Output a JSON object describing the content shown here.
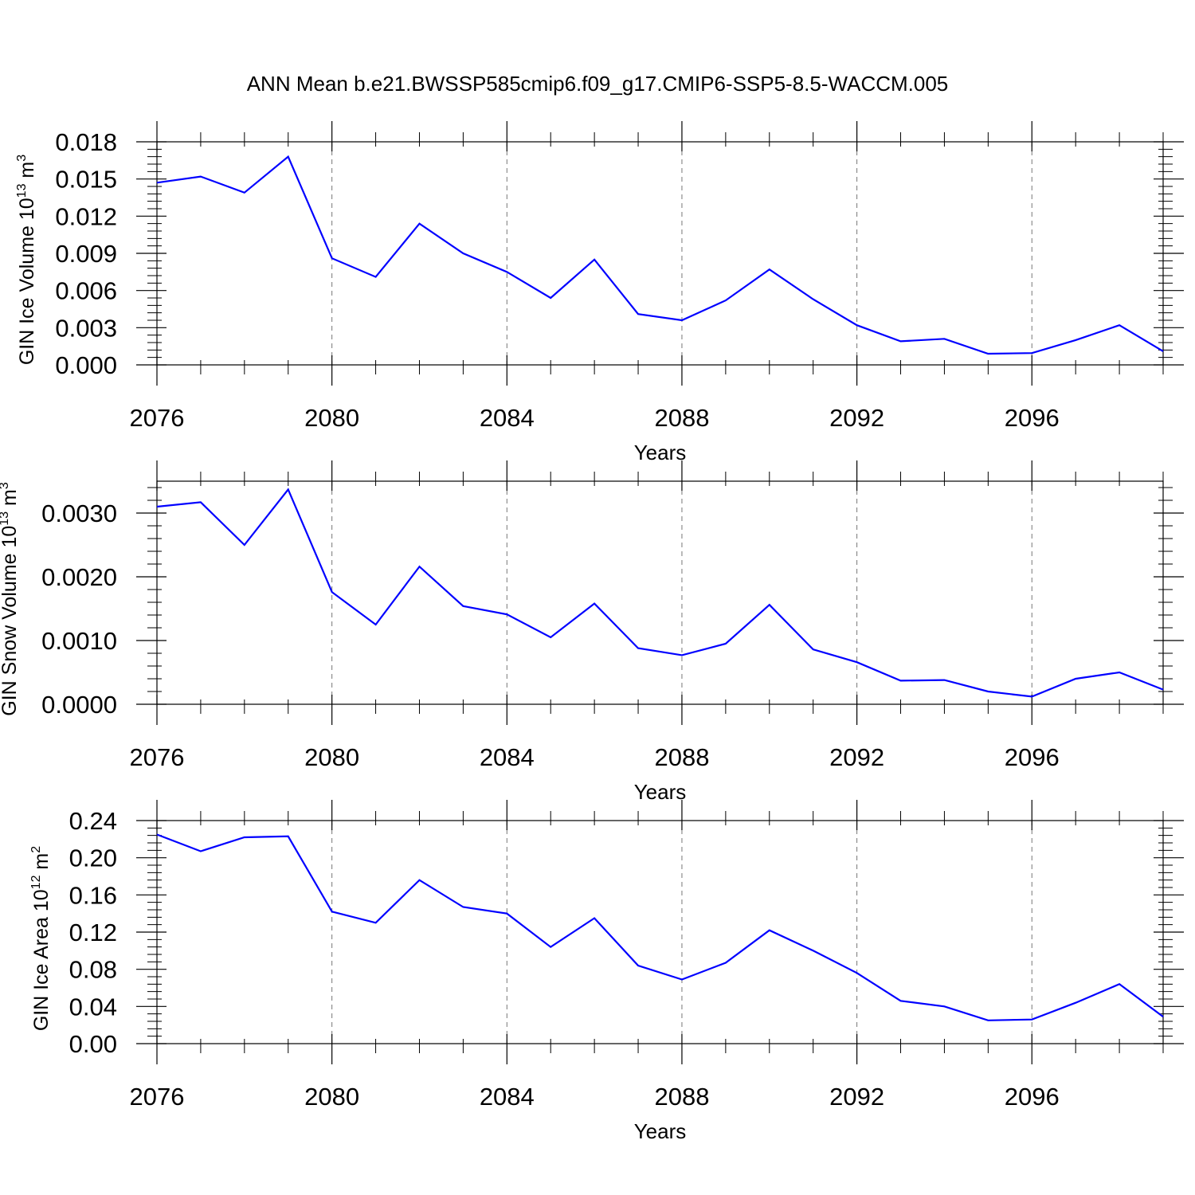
{
  "title": "ANN Mean b.e21.BWSSP585cmip6.f09_g17.CMIP6-SSP5-8.5-WACCM.005",
  "chart_data": [
    {
      "type": "line",
      "ylabel": {
        "text": "GIN Ice Volume 10",
        "exp": "13",
        "unit": " m",
        "unit_exp": "3"
      },
      "xlabel": "Years",
      "x": [
        2076,
        2077,
        2078,
        2079,
        2080,
        2081,
        2082,
        2083,
        2084,
        2085,
        2086,
        2087,
        2088,
        2089,
        2090,
        2091,
        2092,
        2093,
        2094,
        2095,
        2096,
        2097,
        2098,
        2099
      ],
      "values": [
        0.0147,
        0.0152,
        0.0139,
        0.0168,
        0.0086,
        0.0071,
        0.0114,
        0.009,
        0.0075,
        0.0054,
        0.0085,
        0.0041,
        0.0036,
        0.0052,
        0.0077,
        0.0053,
        0.0032,
        0.0019,
        0.0021,
        0.0009,
        0.00095,
        0.002,
        0.0032,
        0.0011
      ],
      "xlim": [
        2076,
        2099
      ],
      "ylim": [
        0,
        0.018
      ],
      "xticks": [
        2076,
        2080,
        2084,
        2088,
        2092,
        2096
      ],
      "xtick_labels": [
        "2076",
        "2080",
        "2084",
        "2088",
        "2092",
        "2096"
      ],
      "yticks": [
        0,
        0.003,
        0.006,
        0.009,
        0.012,
        0.015,
        0.018
      ],
      "ytick_labels": [
        "0.000",
        "0.003",
        "0.006",
        "0.009",
        "0.012",
        "0.015",
        "0.018"
      ],
      "line_color": "#0000ff",
      "grid": "vertical dashed"
    },
    {
      "type": "line",
      "ylabel": {
        "text": "GIN Snow Volume 10",
        "exp": "13",
        "unit": " m",
        "unit_exp": "3"
      },
      "xlabel": "Years",
      "x": [
        2076,
        2077,
        2078,
        2079,
        2080,
        2081,
        2082,
        2083,
        2084,
        2085,
        2086,
        2087,
        2088,
        2089,
        2090,
        2091,
        2092,
        2093,
        2094,
        2095,
        2096,
        2097,
        2098,
        2099
      ],
      "values": [
        0.0031,
        0.00317,
        0.0025,
        0.00337,
        0.00176,
        0.00125,
        0.00216,
        0.00154,
        0.00141,
        0.00105,
        0.00158,
        0.00088,
        0.00077,
        0.00095,
        0.00156,
        0.00086,
        0.00066,
        0.00037,
        0.00038,
        0.0002,
        0.00012,
        0.0004,
        0.0005,
        0.00023
      ],
      "xlim": [
        2076,
        2099
      ],
      "ylim": [
        0,
        0.0035
      ],
      "xticks": [
        2076,
        2080,
        2084,
        2088,
        2092,
        2096
      ],
      "xtick_labels": [
        "2076",
        "2080",
        "2084",
        "2088",
        "2092",
        "2096"
      ],
      "yticks": [
        0,
        0.001,
        0.002,
        0.003
      ],
      "ytick_labels": [
        "0.0000",
        "0.0010",
        "0.0020",
        "0.0030"
      ],
      "line_color": "#0000ff",
      "grid": "vertical dashed"
    },
    {
      "type": "line",
      "ylabel": {
        "text": "GIN Ice Area 10",
        "exp": "12",
        "unit": " m",
        "unit_exp": "2"
      },
      "xlabel": "Years",
      "x": [
        2076,
        2077,
        2078,
        2079,
        2080,
        2081,
        2082,
        2083,
        2084,
        2085,
        2086,
        2087,
        2088,
        2089,
        2090,
        2091,
        2092,
        2093,
        2094,
        2095,
        2096,
        2097,
        2098,
        2099
      ],
      "values": [
        0.225,
        0.207,
        0.222,
        0.223,
        0.142,
        0.13,
        0.176,
        0.147,
        0.14,
        0.104,
        0.135,
        0.084,
        0.069,
        0.087,
        0.122,
        0.1,
        0.076,
        0.046,
        0.04,
        0.025,
        0.026,
        0.044,
        0.064,
        0.029
      ],
      "xlim": [
        2076,
        2099
      ],
      "ylim": [
        0,
        0.24
      ],
      "xticks": [
        2076,
        2080,
        2084,
        2088,
        2092,
        2096
      ],
      "xtick_labels": [
        "2076",
        "2080",
        "2084",
        "2088",
        "2092",
        "2096"
      ],
      "yticks": [
        0,
        0.04,
        0.08,
        0.12,
        0.16,
        0.2,
        0.24
      ],
      "ytick_labels": [
        "0.00",
        "0.04",
        "0.08",
        "0.12",
        "0.16",
        "0.20",
        "0.24"
      ],
      "line_color": "#0000ff",
      "grid": "vertical dashed"
    }
  ]
}
